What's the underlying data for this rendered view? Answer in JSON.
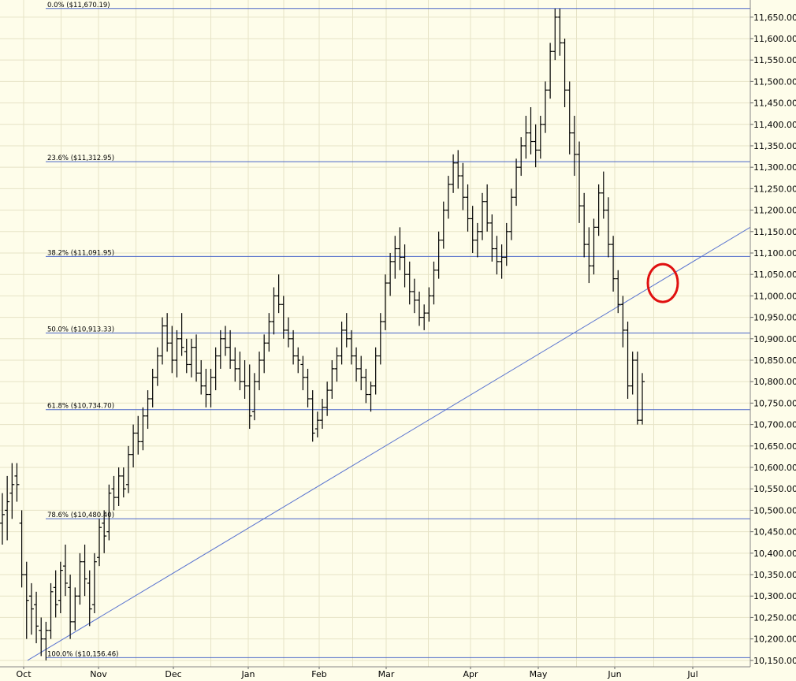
{
  "chart_data": {
    "type": "ohlc",
    "title": "",
    "ylim": [
      10135,
      11690
    ],
    "y_ticks": [
      10150,
      10200,
      10250,
      10300,
      10350,
      10400,
      10450,
      10500,
      10550,
      10600,
      10650,
      10700,
      10750,
      10800,
      10850,
      10900,
      10950,
      11000,
      11050,
      11100,
      11150,
      11200,
      11250,
      11300,
      11350,
      11400,
      11450,
      11500,
      11550,
      11600,
      11650
    ],
    "y_tick_labels": [
      "10,150.00",
      "10,200.00",
      "10,250.00",
      "10,300.00",
      "10,350.00",
      "10,400.00",
      "10,450.00",
      "10,500.00",
      "10,550.00",
      "10,600.00",
      "10,650.00",
      "10,700.00",
      "10,750.00",
      "10,800.00",
      "10,850.00",
      "10,900.00",
      "10,950.00",
      "11,000.00",
      "11,050.00",
      "11,100.00",
      "11,150.00",
      "11,200.00",
      "11,250.00",
      "11,300.00",
      "11,350.00",
      "11,400.00",
      "11,450.00",
      "11,500.00",
      "11,550.00",
      "11,600.00",
      "11,650.00"
    ],
    "x_labels": [
      "Oct",
      "Nov",
      "Dec",
      "Jan",
      "Feb",
      "Mar",
      "Apr",
      "May",
      "Jun",
      "Jul"
    ],
    "fib_levels": [
      {
        "label": "0.0% ($11,670.19)",
        "value": 11670.19
      },
      {
        "label": "23.6% ($11,312.95)",
        "value": 11312.95
      },
      {
        "label": "38.2% ($11,091.95)",
        "value": 11091.95
      },
      {
        "label": "50.0% ($10,913.33)",
        "value": 10913.33
      },
      {
        "label": "61.8% ($10,734.70)",
        "value": 10734.7
      },
      {
        "label": "78.6% ($10,480.40)",
        "value": 10480.4
      },
      {
        "label": "100.0% ($10,156.46)",
        "value": 10156.46
      }
    ],
    "trendline": {
      "start": {
        "x": "Oct",
        "y": 10150
      },
      "end": {
        "x": "Jul",
        "y": 11160
      }
    },
    "highlight_circle": {
      "x": "Jun",
      "y": 11030,
      "color": "#e01010"
    },
    "ohlc": [
      [
        10470,
        10540,
        10420,
        10490
      ],
      [
        10500,
        10580,
        10430,
        10520
      ],
      [
        10540,
        10610,
        10480,
        10560
      ],
      [
        10580,
        10610,
        10520,
        10560
      ],
      [
        10470,
        10500,
        10320,
        10350
      ],
      [
        10350,
        10380,
        10200,
        10290
      ],
      [
        10300,
        10330,
        10210,
        10270
      ],
      [
        10280,
        10310,
        10190,
        10230
      ],
      [
        10220,
        10250,
        10160,
        10200
      ],
      [
        10200,
        10240,
        10150,
        10220
      ],
      [
        10220,
        10330,
        10200,
        10310
      ],
      [
        10320,
        10360,
        10250,
        10280
      ],
      [
        10290,
        10380,
        10260,
        10360
      ],
      [
        10370,
        10420,
        10300,
        10330
      ],
      [
        10320,
        10350,
        10200,
        10240
      ],
      [
        10240,
        10320,
        10220,
        10300
      ],
      [
        10300,
        10400,
        10280,
        10380
      ],
      [
        10380,
        10420,
        10300,
        10340
      ],
      [
        10330,
        10360,
        10230,
        10270
      ],
      [
        10280,
        10400,
        10260,
        10380
      ],
      [
        10390,
        10480,
        10370,
        10460
      ],
      [
        10470,
        10500,
        10400,
        10440
      ],
      [
        10450,
        10560,
        10430,
        10540
      ],
      [
        10550,
        10580,
        10500,
        10530
      ],
      [
        10530,
        10600,
        10510,
        10580
      ],
      [
        10580,
        10600,
        10530,
        10550
      ],
      [
        10560,
        10650,
        10540,
        10630
      ],
      [
        10630,
        10700,
        10600,
        10680
      ],
      [
        10680,
        10720,
        10630,
        10660
      ],
      [
        10660,
        10740,
        10640,
        10720
      ],
      [
        10720,
        10780,
        10690,
        10760
      ],
      [
        10760,
        10830,
        10740,
        10810
      ],
      [
        10810,
        10880,
        10790,
        10860
      ],
      [
        10860,
        10950,
        10840,
        10930
      ],
      [
        10930,
        10960,
        10870,
        10890
      ],
      [
        10890,
        10930,
        10820,
        10850
      ],
      [
        10850,
        10920,
        10810,
        10900
      ],
      [
        10900,
        10960,
        10860,
        10880
      ],
      [
        10870,
        10900,
        10820,
        10840
      ],
      [
        10840,
        10900,
        10810,
        10880
      ],
      [
        10880,
        10910,
        10800,
        10820
      ],
      [
        10820,
        10850,
        10770,
        10790
      ],
      [
        10790,
        10830,
        10740,
        10770
      ],
      [
        10770,
        10830,
        10740,
        10810
      ],
      [
        10810,
        10880,
        10780,
        10860
      ],
      [
        10860,
        10920,
        10830,
        10900
      ],
      [
        10900,
        10930,
        10860,
        10880
      ],
      [
        10880,
        10920,
        10830,
        10850
      ],
      [
        10850,
        10880,
        10800,
        10830
      ],
      [
        10830,
        10870,
        10780,
        10800
      ],
      [
        10800,
        10850,
        10760,
        10790
      ],
      [
        10790,
        10840,
        10690,
        10720
      ],
      [
        10730,
        10820,
        10710,
        10800
      ],
      [
        10800,
        10870,
        10780,
        10850
      ],
      [
        10850,
        10910,
        10820,
        10890
      ],
      [
        10890,
        10960,
        10870,
        10940
      ],
      [
        10940,
        11020,
        10910,
        11000
      ],
      [
        11000,
        11050,
        10960,
        10980
      ],
      [
        10980,
        11000,
        10900,
        10920
      ],
      [
        10920,
        10950,
        10880,
        10900
      ],
      [
        10900,
        10920,
        10840,
        10860
      ],
      [
        10860,
        10880,
        10820,
        10850
      ],
      [
        10840,
        10860,
        10780,
        10810
      ],
      [
        10810,
        10830,
        10740,
        10760
      ],
      [
        10760,
        10780,
        10660,
        10680
      ],
      [
        10690,
        10730,
        10670,
        10710
      ],
      [
        10710,
        10760,
        10690,
        10740
      ],
      [
        10740,
        10800,
        10720,
        10780
      ],
      [
        10780,
        10850,
        10760,
        10830
      ],
      [
        10830,
        10880,
        10800,
        10860
      ],
      [
        10860,
        10940,
        10840,
        10920
      ],
      [
        10920,
        10960,
        10880,
        10900
      ],
      [
        10900,
        10920,
        10840,
        10860
      ],
      [
        10860,
        10880,
        10800,
        10830
      ],
      [
        10830,
        10860,
        10780,
        10810
      ],
      [
        10810,
        10830,
        10750,
        10770
      ],
      [
        10770,
        10800,
        10730,
        10790
      ],
      [
        10790,
        10880,
        10770,
        10860
      ],
      [
        10860,
        10960,
        10840,
        10940
      ],
      [
        10940,
        11050,
        10920,
        11030
      ],
      [
        11030,
        11100,
        11000,
        11080
      ],
      [
        11080,
        11140,
        11040,
        11110
      ],
      [
        11110,
        11160,
        11060,
        11090
      ],
      [
        11090,
        11120,
        11020,
        11050
      ],
      [
        11050,
        11080,
        10980,
        11010
      ],
      [
        11010,
        11040,
        10960,
        10990
      ],
      [
        10990,
        11010,
        10930,
        10950
      ],
      [
        10950,
        10980,
        10920,
        10960
      ],
      [
        10960,
        11020,
        10940,
        11000
      ],
      [
        11000,
        11080,
        10980,
        11060
      ],
      [
        11060,
        11150,
        11040,
        11130
      ],
      [
        11130,
        11220,
        11110,
        11200
      ],
      [
        11200,
        11280,
        11180,
        11260
      ],
      [
        11260,
        11330,
        11240,
        11310
      ],
      [
        11310,
        11340,
        11250,
        11280
      ],
      [
        11280,
        11310,
        11200,
        11230
      ],
      [
        11230,
        11260,
        11150,
        11180
      ],
      [
        11180,
        11210,
        11100,
        11130
      ],
      [
        11130,
        11170,
        11090,
        11150
      ],
      [
        11150,
        11240,
        11130,
        11220
      ],
      [
        11220,
        11260,
        11150,
        11170
      ],
      [
        11170,
        11190,
        11080,
        11110
      ],
      [
        11110,
        11140,
        11050,
        11080
      ],
      [
        11080,
        11120,
        11040,
        11090
      ],
      [
        11090,
        11170,
        11070,
        11150
      ],
      [
        11150,
        11250,
        11130,
        11230
      ],
      [
        11230,
        11320,
        11210,
        11300
      ],
      [
        11300,
        11370,
        11280,
        11350
      ],
      [
        11350,
        11420,
        11320,
        11380
      ],
      [
        11380,
        11440,
        11330,
        11360
      ],
      [
        11360,
        11400,
        11300,
        11340
      ],
      [
        11340,
        11420,
        11320,
        11400
      ],
      [
        11400,
        11500,
        11380,
        11480
      ],
      [
        11480,
        11590,
        11460,
        11570
      ],
      [
        11570,
        11670,
        11550,
        11650
      ],
      [
        11650,
        11670,
        11560,
        11590
      ],
      [
        11590,
        11600,
        11440,
        11480
      ],
      [
        11480,
        11500,
        11330,
        11380
      ],
      [
        11380,
        11420,
        11280,
        11330
      ],
      [
        11330,
        11360,
        11170,
        11210
      ],
      [
        11210,
        11240,
        11090,
        11120
      ],
      [
        11120,
        11160,
        11030,
        11070
      ],
      [
        11070,
        11180,
        11050,
        11160
      ],
      [
        11160,
        11260,
        11140,
        11240
      ],
      [
        11240,
        11290,
        11180,
        11200
      ],
      [
        11200,
        11230,
        11090,
        11120
      ],
      [
        11120,
        11140,
        11010,
        11040
      ],
      [
        11040,
        11060,
        10960,
        10980
      ],
      [
        10980,
        11000,
        10880,
        10920
      ],
      [
        10920,
        10940,
        10760,
        10790
      ],
      [
        10790,
        10870,
        10770,
        10850
      ],
      [
        10850,
        10870,
        10700,
        10710
      ],
      [
        10710,
        10820,
        10700,
        10800
      ]
    ]
  }
}
